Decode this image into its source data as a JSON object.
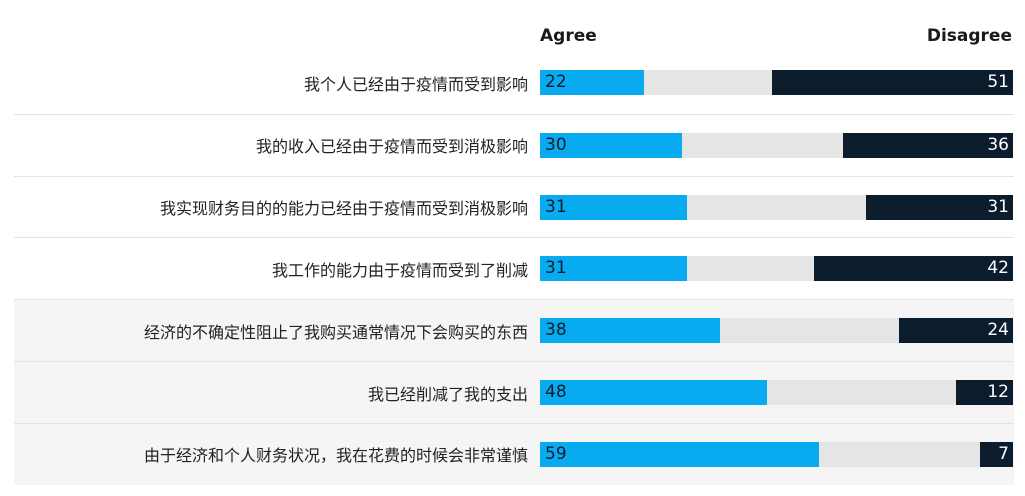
{
  "chart_data": {
    "type": "bar",
    "orientation": "horizontal-diverging",
    "headers": {
      "agree": "Agree",
      "disagree": "Disagree"
    },
    "scale_max": 100,
    "colors": {
      "agree": "#08aaf0",
      "disagree": "#0b1c2d",
      "neutral": "#e5e5e5"
    },
    "categories": [
      "我个人已经由于疫情而受到影响",
      "我的收入已经由于疫情而受到消极影响",
      "我实现财务目的的能力已经由于疫情而受到消极影响",
      "我工作的能力由于疫情而受到了削减",
      "经济的不确定性阻止了我购买通常情况下会购买的东西",
      "我已经削减了我的支出",
      "由于经济和个人财务状况，我在花费的时候会非常谨慎"
    ],
    "series": [
      {
        "name": "Agree",
        "values": [
          22,
          30,
          31,
          31,
          38,
          48,
          59
        ]
      },
      {
        "name": "Disagree",
        "values": [
          51,
          36,
          31,
          42,
          24,
          12,
          7
        ]
      }
    ]
  }
}
